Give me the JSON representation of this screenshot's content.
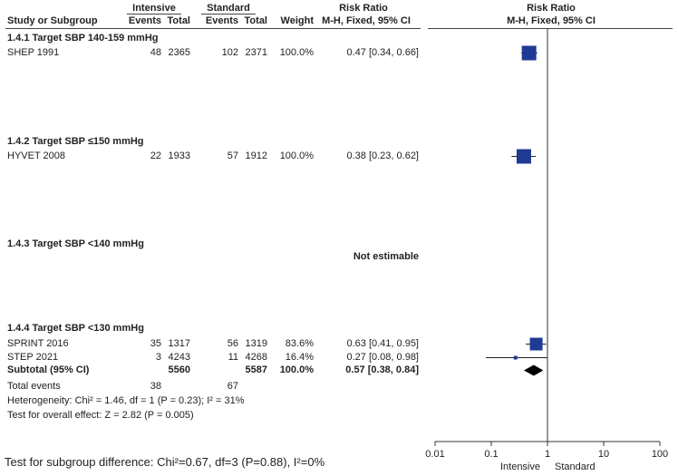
{
  "header": {
    "group1": "Intensive",
    "group2": "Standard",
    "study_col": "Study or Subgroup",
    "events": "Events",
    "total": "Total",
    "weight": "Weight",
    "rr_title": "Risk Ratio",
    "rr_method": "M-H, Fixed, 95% CI",
    "plot_title": "Risk Ratio",
    "plot_method": "M-H, Fixed, 95% CI"
  },
  "subgroups": [
    {
      "title": "1.4.1 Target SBP 140-159 mmHg",
      "studies": [
        {
          "name": "SHEP 1991",
          "e1": "48",
          "t1": "2365",
          "e2": "102",
          "t2": "2371",
          "weight": "100.0%",
          "ci": "0.47 [0.34, 0.66]"
        }
      ]
    },
    {
      "title": "1.4.2 Target SBP ≤150 mmHg",
      "studies": [
        {
          "name": "HYVET 2008",
          "e1": "22",
          "t1": "1933",
          "e2": "57",
          "t2": "1912",
          "weight": "100.0%",
          "ci": "0.38 [0.23, 0.62]"
        }
      ]
    },
    {
      "title": "1.4.3 Target SBP <140 mmHg",
      "not_estimable": "Not estimable"
    },
    {
      "title": "1.4.4 Target SBP <130 mmHg",
      "studies": [
        {
          "name": "SPRINT 2016",
          "e1": "35",
          "t1": "1317",
          "e2": "56",
          "t2": "1319",
          "weight": "83.6%",
          "ci": "0.63 [0.41, 0.95]"
        },
        {
          "name": "STEP 2021",
          "e1": "3",
          "t1": "4243",
          "e2": "11",
          "t2": "4268",
          "weight": "16.4%",
          "ci": "0.27 [0.08, 0.98]"
        }
      ],
      "subtotal": {
        "name": "Subtotal (95% CI)",
        "t1": "5560",
        "t2": "5587",
        "weight": "100.0%",
        "ci": "0.57 [0.38, 0.84]"
      },
      "total_events": {
        "name": "Total events",
        "e1": "38",
        "e2": "67"
      },
      "heterogeneity": "Heterogeneity: Chi² = 1.46, df = 1 (P = 0.23); I² = 31%",
      "overall_effect": "Test for overall effect: Z = 2.82 (P = 0.005)"
    }
  ],
  "footer": "Test for subgroup difference: Chi²=0.67, df=3 (P=0.88), I²=0%",
  "colors": {
    "marker": "#1f3a93",
    "text": "#222222"
  },
  "chart_data": {
    "type": "scatter",
    "scale": "log",
    "xlim": [
      0.01,
      100
    ],
    "null_line": 1,
    "ticks": [
      "0.01",
      "0.1",
      "1",
      "10",
      "100"
    ],
    "tick_values": [
      0.01,
      0.1,
      1,
      10,
      100
    ],
    "left_label": "Intensive",
    "right_label": "Standard",
    "points": [
      {
        "study": "SHEP 1991",
        "rr": 0.47,
        "lo": 0.34,
        "hi": 0.66,
        "weight": 100.0
      },
      {
        "study": "HYVET 2008",
        "rr": 0.38,
        "lo": 0.23,
        "hi": 0.62,
        "weight": 100.0
      },
      {
        "study": "SPRINT 2016",
        "rr": 0.63,
        "lo": 0.41,
        "hi": 0.95,
        "weight": 83.6
      },
      {
        "study": "STEP 2021",
        "rr": 0.27,
        "lo": 0.08,
        "hi": 0.98,
        "weight": 16.4
      }
    ],
    "diamond": {
      "study": "Subtotal (95% CI)",
      "rr": 0.57,
      "lo": 0.38,
      "hi": 0.84
    }
  }
}
